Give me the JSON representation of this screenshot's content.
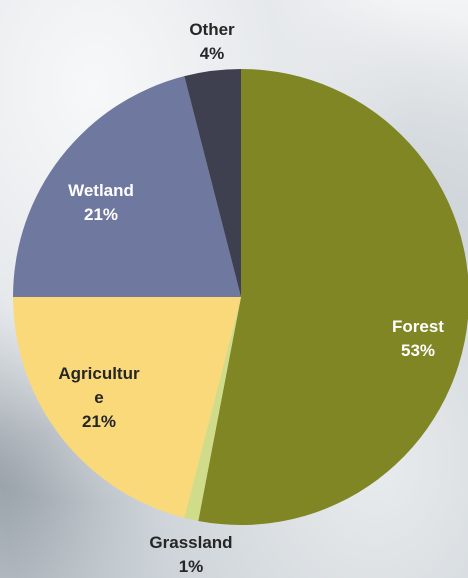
{
  "chart_data": {
    "type": "pie",
    "slices": [
      {
        "label": "Forest",
        "value": 53,
        "value_label": "53%",
        "color": "#7f8623"
      },
      {
        "label": "Grassland",
        "value": 1,
        "value_label": "1%",
        "color": "#d1dc8a"
      },
      {
        "label": "Agriculture",
        "value": 21,
        "value_label": "21%",
        "color": "#fad97a"
      },
      {
        "label": "Wetland",
        "value": 21,
        "value_label": "21%",
        "color": "#6f799f"
      },
      {
        "label": "Other",
        "value": 4,
        "value_label": "4%",
        "color": "#3f404f"
      }
    ],
    "label_lines": {
      "Forest": [
        "Forest",
        "53%"
      ],
      "Grassland": [
        "Grassland",
        "1%"
      ],
      "Agriculture": [
        "Agricultur",
        "e",
        "21%"
      ],
      "Wetland": [
        "Wetland",
        "21%"
      ],
      "Other": [
        "Other",
        "4%"
      ]
    }
  }
}
